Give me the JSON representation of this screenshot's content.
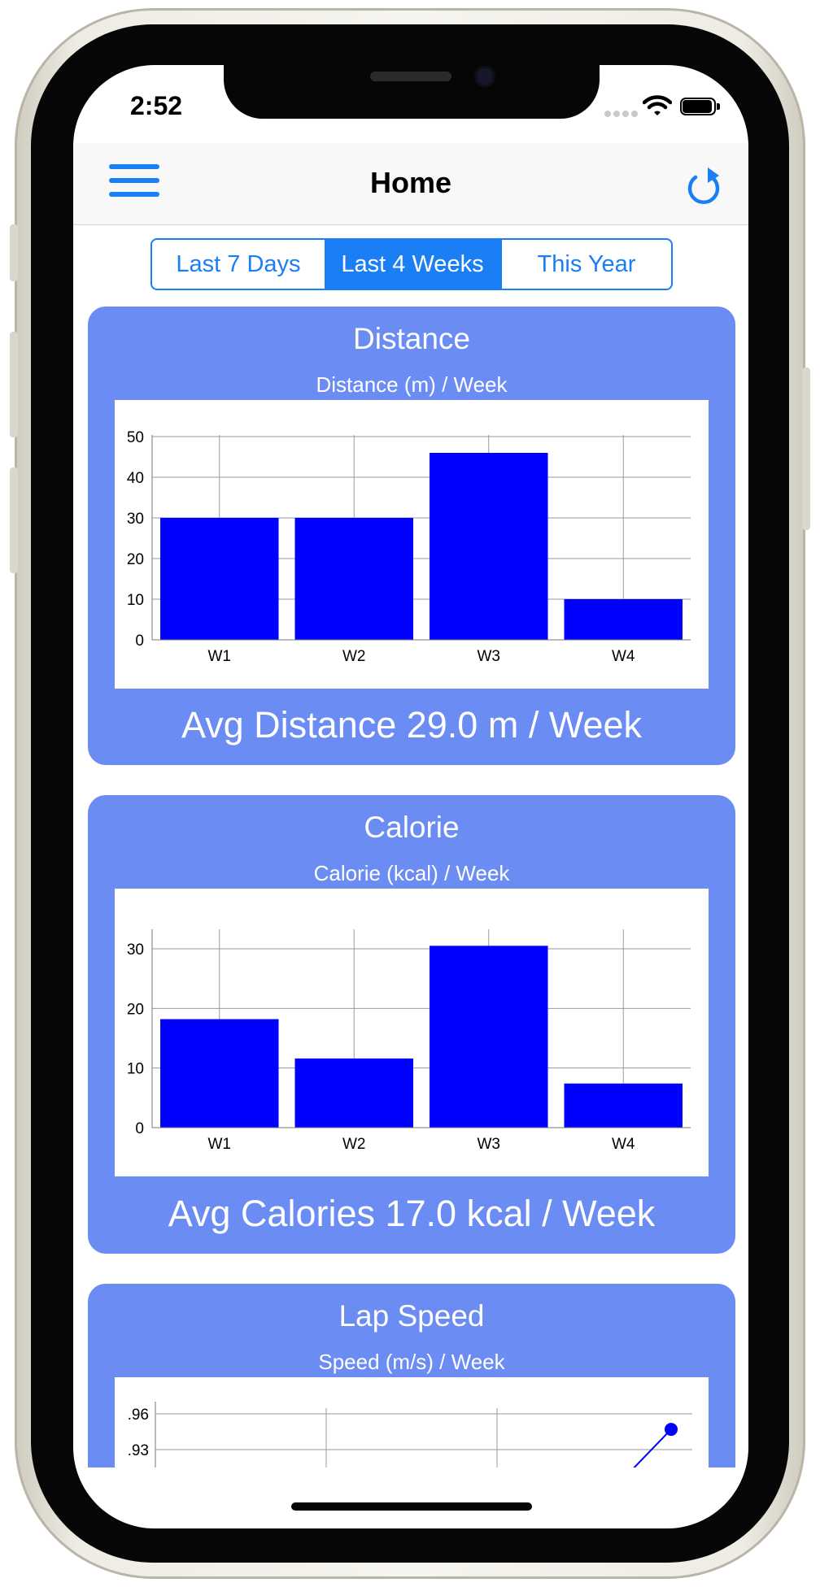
{
  "status_bar": {
    "time": "2:52"
  },
  "nav": {
    "title": "Home"
  },
  "segments": {
    "items": [
      "Last 7 Days",
      "Last 4 Weeks",
      "This Year"
    ],
    "selected": "Last 4 Weeks"
  },
  "cards": [
    {
      "title": "Distance",
      "subtitle": "Distance (m) / Week",
      "footer": "Avg Distance 29.0 m / Week"
    },
    {
      "title": "Calorie",
      "subtitle": "Calorie (kcal) / Week",
      "footer": "Avg Calories 17.0 kcal / Week"
    },
    {
      "title": "Lap Speed",
      "subtitle": "Speed (m/s) / Week"
    }
  ],
  "colors": {
    "accent": "#1a7ef5",
    "card": "#6b8cf2",
    "bar": "#0000ff"
  },
  "icons": [
    "menu-icon",
    "refresh-icon",
    "wifi-icon",
    "battery-icon"
  ],
  "chart_data": [
    {
      "type": "bar",
      "title": "Distance (m) / Week",
      "categories": [
        "W1",
        "W2",
        "W3",
        "W4"
      ],
      "values": [
        30,
        30,
        46,
        10
      ],
      "ylim": [
        0,
        50
      ],
      "yticks": [
        "0",
        "10",
        "20",
        "30",
        "40",
        "50"
      ],
      "grid": true
    },
    {
      "type": "bar",
      "title": "Calorie (kcal) / Week",
      "categories": [
        "W1",
        "W2",
        "W3",
        "W4"
      ],
      "values": [
        18.2,
        11.6,
        30.5,
        7.4
      ],
      "ylim": [
        0,
        33
      ],
      "yticks": [
        "0",
        "10",
        "20",
        "30"
      ],
      "grid": true
    },
    {
      "type": "line",
      "title": "Speed (m/s) / Week",
      "yticks": [
        ".96",
        ".93"
      ],
      "grid": true,
      "partial": true,
      "visible_points": [
        {
          "x": "W4",
          "y": 0.947
        }
      ]
    }
  ]
}
